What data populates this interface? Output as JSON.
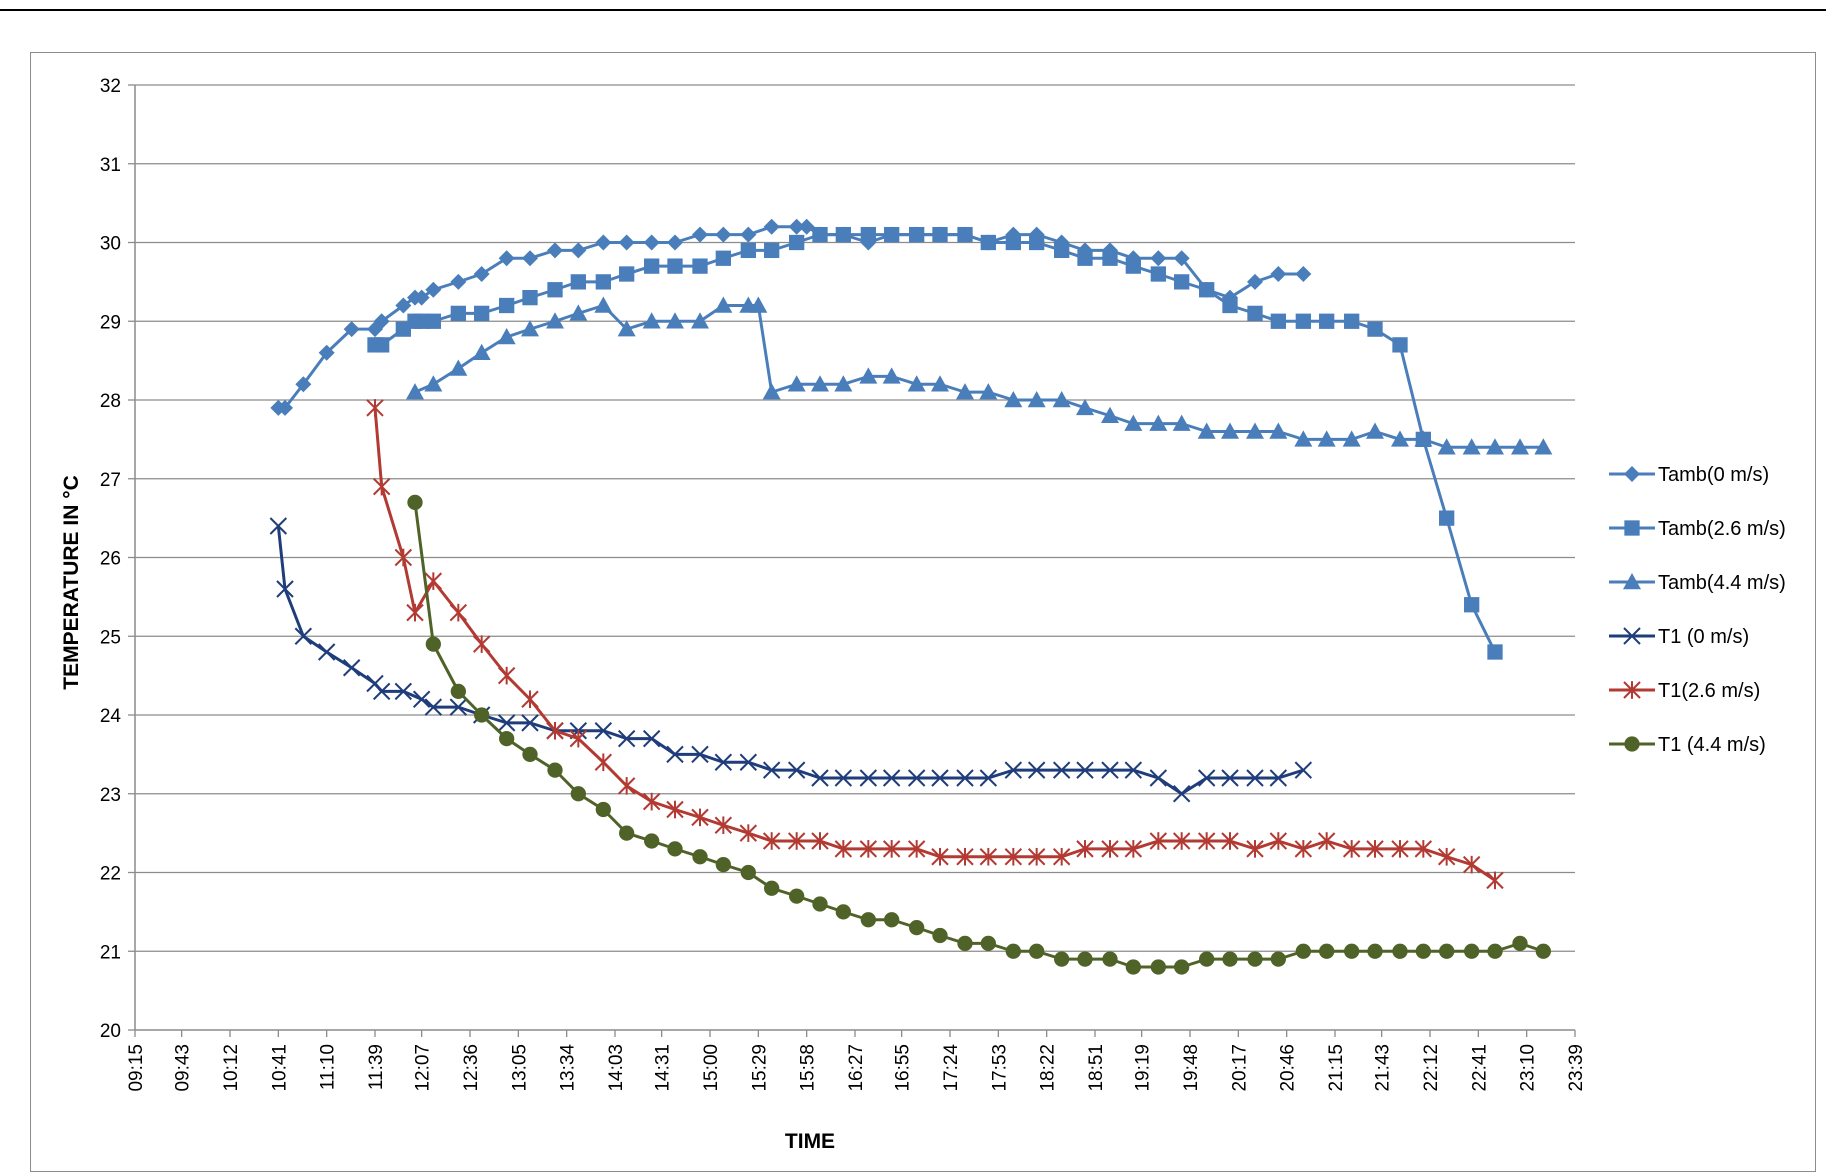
{
  "page": {
    "header_text": ""
  },
  "chart_data": {
    "type": "line",
    "title": "",
    "xlabel": "TIME",
    "ylabel": "TEMPERATURE IN °C",
    "x_ticks": [
      "09:15",
      "09:43",
      "10:12",
      "10:41",
      "11:10",
      "11:39",
      "12:07",
      "12:36",
      "13:05",
      "13:34",
      "14:03",
      "14:31",
      "15:00",
      "15:29",
      "15:58",
      "16:27",
      "16:55",
      "17:24",
      "17:53",
      "18:22",
      "18:51",
      "19:19",
      "19:48",
      "20:17",
      "20:46",
      "21:15",
      "21:43",
      "22:12",
      "22:41",
      "23:10",
      "23:39"
    ],
    "xlim": [
      "09:15",
      "23:39"
    ],
    "ylim": [
      20,
      32
    ],
    "y_ticks": [
      20,
      21,
      22,
      23,
      24,
      25,
      26,
      27,
      28,
      29,
      30,
      31,
      32
    ],
    "grid": "horizontal",
    "legend_position": "right",
    "series": [
      {
        "name": "Tamb(0 m/s)",
        "color": "#4a7ebb",
        "marker": "diamond",
        "x": [
          "10:41",
          "10:45",
          "10:56",
          "11:10",
          "11:25",
          "11:39",
          "11:43",
          "11:56",
          "12:03",
          "12:07",
          "12:14",
          "12:29",
          "12:43",
          "12:58",
          "13:12",
          "13:27",
          "13:41",
          "13:56",
          "14:10",
          "14:25",
          "14:39",
          "14:54",
          "15:08",
          "15:23",
          "15:37",
          "15:52",
          "15:58",
          "16:06",
          "16:20",
          "16:35",
          "16:49",
          "17:04",
          "17:18",
          "17:33",
          "17:47",
          "18:02",
          "18:16",
          "18:31",
          "18:45",
          "19:00",
          "19:14",
          "19:29",
          "19:43",
          "19:58",
          "20:12",
          "20:27",
          "20:41",
          "20:56"
        ],
        "values": [
          27.9,
          27.9,
          28.2,
          28.6,
          28.9,
          28.9,
          29.0,
          29.2,
          29.3,
          29.3,
          29.4,
          29.5,
          29.6,
          29.8,
          29.8,
          29.9,
          29.9,
          30.0,
          30.0,
          30.0,
          30.0,
          30.1,
          30.1,
          30.1,
          30.2,
          30.2,
          30.2,
          30.1,
          30.1,
          30.0,
          30.1,
          30.1,
          30.1,
          30.1,
          30.0,
          30.1,
          30.1,
          30.0,
          29.9,
          29.9,
          29.8,
          29.8,
          29.8,
          29.4,
          29.3,
          29.5,
          29.6,
          29.6
        ]
      },
      {
        "name": "Tamb(2.6 m/s)",
        "color": "#4a7ebb",
        "marker": "square",
        "x": [
          "11:39",
          "11:43",
          "11:56",
          "12:03",
          "12:07",
          "12:14",
          "12:29",
          "12:43",
          "12:58",
          "13:12",
          "13:27",
          "13:41",
          "13:56",
          "14:10",
          "14:25",
          "14:39",
          "14:54",
          "15:08",
          "15:23",
          "15:37",
          "15:52",
          "16:06",
          "16:20",
          "16:35",
          "16:49",
          "17:04",
          "17:18",
          "17:33",
          "17:47",
          "18:02",
          "18:16",
          "18:31",
          "18:45",
          "19:00",
          "19:14",
          "19:29",
          "19:43",
          "19:58",
          "20:12",
          "20:27",
          "20:41",
          "20:56",
          "21:10",
          "21:25",
          "21:39",
          "21:54",
          "22:08",
          "22:22",
          "22:37",
          "22:51"
        ],
        "values": [
          28.7,
          28.7,
          28.9,
          29.0,
          29.0,
          29.0,
          29.1,
          29.1,
          29.2,
          29.3,
          29.4,
          29.5,
          29.5,
          29.6,
          29.7,
          29.7,
          29.7,
          29.8,
          29.9,
          29.9,
          30.0,
          30.1,
          30.1,
          30.1,
          30.1,
          30.1,
          30.1,
          30.1,
          30.0,
          30.0,
          30.0,
          29.9,
          29.8,
          29.8,
          29.7,
          29.6,
          29.5,
          29.4,
          29.2,
          29.1,
          29.0,
          29.0,
          29.0,
          29.0,
          28.9,
          28.7,
          27.5,
          26.5,
          25.4,
          24.8
        ]
      },
      {
        "name": "Tamb(4.4 m/s)",
        "color": "#4a7ebb",
        "marker": "triangle",
        "x": [
          "12:03",
          "12:14",
          "12:29",
          "12:43",
          "12:58",
          "13:12",
          "13:27",
          "13:41",
          "13:56",
          "14:10",
          "14:25",
          "14:39",
          "14:54",
          "15:08",
          "15:23",
          "15:29",
          "15:37",
          "15:52",
          "16:06",
          "16:20",
          "16:35",
          "16:49",
          "17:04",
          "17:18",
          "17:33",
          "17:47",
          "18:02",
          "18:16",
          "18:31",
          "18:45",
          "19:00",
          "19:14",
          "19:29",
          "19:43",
          "19:58",
          "20:12",
          "20:27",
          "20:41",
          "20:56",
          "21:10",
          "21:25",
          "21:39",
          "21:54",
          "22:08",
          "22:22",
          "22:37",
          "22:51",
          "23:06",
          "23:20"
        ],
        "values": [
          28.1,
          28.2,
          28.4,
          28.6,
          28.8,
          28.9,
          29.0,
          29.1,
          29.2,
          28.9,
          29.0,
          29.0,
          29.0,
          29.2,
          29.2,
          29.2,
          28.1,
          28.2,
          28.2,
          28.2,
          28.3,
          28.3,
          28.2,
          28.2,
          28.1,
          28.1,
          28.0,
          28.0,
          28.0,
          27.9,
          27.8,
          27.7,
          27.7,
          27.7,
          27.6,
          27.6,
          27.6,
          27.6,
          27.5,
          27.5,
          27.5,
          27.6,
          27.5,
          27.5,
          27.4,
          27.4,
          27.4,
          27.4,
          27.4
        ]
      },
      {
        "name": "T1 (0 m/s)",
        "color": "#1f3d7a",
        "marker": "x",
        "x": [
          "10:41",
          "10:45",
          "10:56",
          "11:10",
          "11:25",
          "11:39",
          "11:43",
          "11:56",
          "12:07",
          "12:14",
          "12:29",
          "12:43",
          "12:58",
          "13:12",
          "13:27",
          "13:41",
          "13:56",
          "14:10",
          "14:25",
          "14:39",
          "14:54",
          "15:08",
          "15:23",
          "15:37",
          "15:52",
          "16:06",
          "16:20",
          "16:35",
          "16:49",
          "17:04",
          "17:18",
          "17:33",
          "17:47",
          "18:02",
          "18:16",
          "18:31",
          "18:45",
          "19:00",
          "19:14",
          "19:29",
          "19:43",
          "19:58",
          "20:12",
          "20:27",
          "20:41",
          "20:56"
        ],
        "values": [
          26.4,
          25.6,
          25.0,
          24.8,
          24.6,
          24.4,
          24.3,
          24.3,
          24.2,
          24.1,
          24.1,
          24.0,
          23.9,
          23.9,
          23.8,
          23.8,
          23.8,
          23.7,
          23.7,
          23.5,
          23.5,
          23.4,
          23.4,
          23.3,
          23.3,
          23.2,
          23.2,
          23.2,
          23.2,
          23.2,
          23.2,
          23.2,
          23.2,
          23.3,
          23.3,
          23.3,
          23.3,
          23.3,
          23.3,
          23.2,
          23.0,
          23.2,
          23.2,
          23.2,
          23.2,
          23.3
        ]
      },
      {
        "name": "T1(2.6 m/s)",
        "color": "#b23a32",
        "marker": "star",
        "x": [
          "11:39",
          "11:43",
          "11:56",
          "12:03",
          "12:14",
          "12:29",
          "12:43",
          "12:58",
          "13:12",
          "13:27",
          "13:41",
          "13:56",
          "14:10",
          "14:25",
          "14:39",
          "14:54",
          "15:08",
          "15:23",
          "15:37",
          "15:52",
          "16:06",
          "16:20",
          "16:35",
          "16:49",
          "17:04",
          "17:18",
          "17:33",
          "17:47",
          "18:02",
          "18:16",
          "18:31",
          "18:45",
          "19:00",
          "19:14",
          "19:29",
          "19:43",
          "19:58",
          "20:12",
          "20:27",
          "20:41",
          "20:56",
          "21:10",
          "21:25",
          "21:39",
          "21:54",
          "22:08",
          "22:22",
          "22:37",
          "22:51"
        ],
        "values": [
          27.9,
          26.9,
          26.0,
          25.3,
          25.7,
          25.3,
          24.9,
          24.5,
          24.2,
          23.8,
          23.7,
          23.4,
          23.1,
          22.9,
          22.8,
          22.7,
          22.6,
          22.5,
          22.4,
          22.4,
          22.4,
          22.3,
          22.3,
          22.3,
          22.3,
          22.2,
          22.2,
          22.2,
          22.2,
          22.2,
          22.2,
          22.3,
          22.3,
          22.3,
          22.4,
          22.4,
          22.4,
          22.4,
          22.3,
          22.4,
          22.3,
          22.4,
          22.3,
          22.3,
          22.3,
          22.3,
          22.2,
          22.1,
          21.9
        ]
      },
      {
        "name": "T1 (4.4 m/s)",
        "color": "#4f6228",
        "marker": "circle",
        "x": [
          "12:03",
          "12:14",
          "12:29",
          "12:43",
          "12:58",
          "13:12",
          "13:27",
          "13:41",
          "13:56",
          "14:10",
          "14:25",
          "14:39",
          "14:54",
          "15:08",
          "15:23",
          "15:37",
          "15:52",
          "16:06",
          "16:20",
          "16:35",
          "16:49",
          "17:04",
          "17:18",
          "17:33",
          "17:47",
          "18:02",
          "18:16",
          "18:31",
          "18:45",
          "19:00",
          "19:14",
          "19:29",
          "19:43",
          "19:58",
          "20:12",
          "20:27",
          "20:41",
          "20:56",
          "21:10",
          "21:25",
          "21:39",
          "21:54",
          "22:08",
          "22:22",
          "22:37",
          "22:51",
          "23:06",
          "23:20"
        ],
        "values": [
          26.7,
          24.9,
          24.3,
          24.0,
          23.7,
          23.5,
          23.3,
          23.0,
          22.8,
          22.5,
          22.4,
          22.3,
          22.2,
          22.1,
          22.0,
          21.8,
          21.7,
          21.6,
          21.5,
          21.4,
          21.4,
          21.3,
          21.2,
          21.1,
          21.1,
          21.0,
          21.0,
          20.9,
          20.9,
          20.9,
          20.8,
          20.8,
          20.8,
          20.9,
          20.9,
          20.9,
          20.9,
          21.0,
          21.0,
          21.0,
          21.0,
          21.0,
          21.0,
          21.0,
          21.0,
          21.0,
          21.1,
          21.0
        ]
      }
    ]
  }
}
